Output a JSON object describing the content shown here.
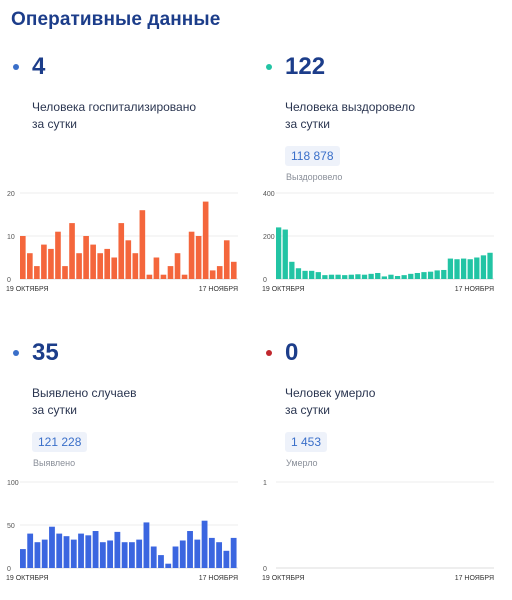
{
  "page_title": "Оперативные данные",
  "cards": [
    {
      "number": "4",
      "label_line1": "Человека госпитализировано",
      "label_line2": "за сутки",
      "total": "",
      "total_label": "",
      "dot_color": "#3a6fc9"
    },
    {
      "number": "122",
      "label_line1": "Человека выздоровело",
      "label_line2": "за сутки",
      "total": "118 878",
      "total_label": "Выздоровело",
      "dot_color": "#22c4a4"
    },
    {
      "number": "35",
      "label_line1": "Выявлено случаев",
      "label_line2": "за сутки",
      "total": "121 228",
      "total_label": "Выявлено",
      "dot_color": "#3a6fc9"
    },
    {
      "number": "0",
      "label_line1": "Человек умерло",
      "label_line2": "за сутки",
      "total": "1 453",
      "total_label": "Умерло",
      "dot_color": "#c0272d"
    }
  ],
  "chart_data": [
    {
      "type": "bar",
      "title": "",
      "color": "#f4663c",
      "x_start_label": "19 ОКТЯБРЯ",
      "x_end_label": "17 НОЯБРЯ",
      "yticks": [
        0,
        10,
        20
      ],
      "ylim": [
        0,
        20
      ],
      "values": [
        10,
        6,
        3,
        8,
        7,
        11,
        3,
        13,
        6,
        10,
        8,
        6,
        7,
        5,
        13,
        9,
        6,
        16,
        1,
        5,
        1,
        3,
        6,
        1,
        11,
        10,
        18,
        2,
        3,
        9,
        4
      ]
    },
    {
      "type": "bar",
      "title": "",
      "color": "#22c4a4",
      "x_start_label": "19 ОКТЯБРЯ",
      "x_end_label": "17 НОЯБРЯ",
      "yticks": [
        0,
        200,
        400
      ],
      "ylim": [
        0,
        400
      ],
      "values": [
        240,
        230,
        80,
        50,
        38,
        38,
        32,
        18,
        20,
        20,
        18,
        20,
        22,
        20,
        24,
        28,
        12,
        20,
        14,
        18,
        24,
        28,
        32,
        34,
        40,
        42,
        95,
        92,
        95,
        92,
        100,
        110,
        122
      ]
    },
    {
      "type": "bar",
      "title": "",
      "color": "#3b66e0",
      "x_start_label": "19 ОКТЯБРЯ",
      "x_end_label": "17 НОЯБРЯ",
      "yticks": [
        0,
        50,
        100
      ],
      "ylim": [
        0,
        100
      ],
      "values": [
        22,
        40,
        30,
        33,
        48,
        40,
        37,
        33,
        40,
        38,
        43,
        30,
        32,
        42,
        30,
        30,
        33,
        53,
        25,
        15,
        5,
        25,
        32,
        43,
        33,
        55,
        35,
        30,
        20,
        35
      ]
    },
    {
      "type": "bar",
      "title": "",
      "color": "#c0272d",
      "x_start_label": "19 ОКТЯБРЯ",
      "x_end_label": "17 НОЯБРЯ",
      "yticks": [
        0,
        1
      ],
      "ylim": [
        0,
        1
      ],
      "values": []
    }
  ]
}
